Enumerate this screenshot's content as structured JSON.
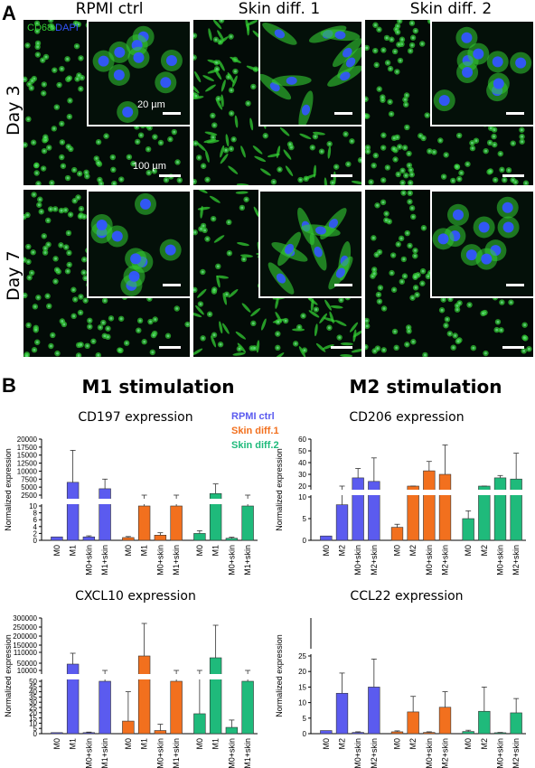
{
  "panel_labels": {
    "a": "A",
    "b": "B"
  },
  "micrographs": {
    "columns": [
      "RPMI ctrl",
      "Skin diff. 1",
      "Skin diff. 2"
    ],
    "rows": [
      "Day 3",
      "Day 7"
    ],
    "stain": {
      "marker": "CD68",
      "nuclear": "DAPI",
      "marker_color": "#33cc33",
      "nuclear_color": "#3355ff"
    },
    "scale_inset": "20 µm",
    "scale_main": "100 µm"
  },
  "stimulation_titles": {
    "m1": "M1 stimulation",
    "m2": "M2 stimulation"
  },
  "legend": [
    {
      "label": "RPMI ctrl",
      "color": "#5b5bef"
    },
    {
      "label": "Skin diff.1",
      "color": "#f2701e"
    },
    {
      "label": "Skin diff.2",
      "color": "#1fba7b"
    }
  ],
  "chart_data": [
    {
      "type": "bar",
      "title": "CD197 expression",
      "ylabel": "Normalized expression",
      "categories": [
        "M0",
        "M1",
        "M0+skin",
        "M1+skin",
        "M0",
        "M1",
        "M0+skin",
        "M1+skin",
        "M0",
        "M1",
        "M0+skin",
        "M1+skin"
      ],
      "groups": [
        "RPMI ctrl",
        "Skin diff.1",
        "Skin diff.2"
      ],
      "values": [
        1,
        6500,
        1,
        4500,
        0.8,
        10,
        1.5,
        10,
        2,
        3000,
        0.6,
        10
      ],
      "errors": [
        0,
        10000,
        0.3,
        3000,
        0.3,
        0.5,
        0.7,
        0.3,
        0.8,
        3000,
        0.3,
        0.3
      ],
      "broken_axis": true,
      "ylim_lower": [
        0,
        10
      ],
      "yticks_lower": [
        "0",
        "2",
        "4",
        "6",
        "8",
        "10"
      ],
      "yticks_upper": [
        "2500",
        "5000",
        "7500",
        "10000",
        "12500",
        "15000",
        "17500",
        "20000"
      ]
    },
    {
      "type": "bar",
      "title": "CD206 expression",
      "ylabel": "Normalized expression",
      "categories": [
        "M0",
        "M2",
        "M0+skin",
        "M2+skin",
        "M0",
        "M2",
        "M0+skin",
        "M2+skin",
        "M0",
        "M2",
        "M0+skin",
        "M2+skin"
      ],
      "groups": [
        "RPMI ctrl",
        "Skin diff.1",
        "Skin diff.2"
      ],
      "values": [
        1,
        8.2,
        27,
        24,
        3,
        13,
        33,
        30,
        5,
        16,
        27,
        26
      ],
      "errors": [
        0,
        2.5,
        8,
        20,
        0.7,
        4,
        8,
        25,
        1.8,
        4,
        2,
        22
      ],
      "broken_axis": true,
      "ylim_lower": [
        0,
        10
      ],
      "yticks_lower": [
        "0",
        "5",
        "10"
      ],
      "yticks_upper": [
        "20",
        "30",
        "40",
        "50",
        "60"
      ]
    },
    {
      "type": "bar",
      "title": "CXCL10 expression",
      "ylabel": "Normalized expression",
      "categories": [
        "M0",
        "M1",
        "M0+skin",
        "M1+skin",
        "M0",
        "M1",
        "M0+skin",
        "M1+skin",
        "M0",
        "M1",
        "M0+skin",
        "M1+skin"
      ],
      "groups": [
        "RPMI ctrl",
        "Skin diff.1",
        "Skin diff.2"
      ],
      "values": [
        1,
        45000,
        1,
        50,
        12,
        90000,
        3,
        50,
        19,
        80000,
        6,
        50
      ],
      "errors": [
        0,
        60000,
        0.5,
        2,
        28,
        180000,
        6,
        1,
        45,
        180000,
        7,
        5
      ],
      "broken_axis": true,
      "ylim_lower": [
        0,
        50
      ],
      "yticks_lower": [
        "0",
        "5",
        "10",
        "15",
        "20",
        "25",
        "30",
        "35",
        "40",
        "45",
        "50"
      ],
      "yticks_upper": [
        "10000",
        "50000",
        "110000",
        "150000",
        "200000",
        "250000",
        "300000"
      ]
    },
    {
      "type": "bar",
      "title": "CCL22 expression",
      "ylabel": "Normalized expression",
      "categories": [
        "M0",
        "M2",
        "M0+skin",
        "M2+skin",
        "M0",
        "M2",
        "M0+skin",
        "M2+skin",
        "M0",
        "M2",
        "M0+skin",
        "M2+skin"
      ],
      "groups": [
        "RPMI ctrl",
        "Skin diff.1",
        "Skin diff.2"
      ],
      "values": [
        1,
        13,
        0.4,
        15,
        0.6,
        7,
        0.4,
        8.5,
        0.7,
        7.2,
        0.3,
        6.7
      ],
      "errors": [
        0,
        6.5,
        0.2,
        9,
        0.3,
        5,
        0.2,
        5,
        0.4,
        7.8,
        0.1,
        4.6
      ],
      "broken_axis": true,
      "ylim_lower": [
        0,
        25
      ],
      "yticks_lower": [
        "0",
        "5",
        "10",
        "15",
        "20",
        "25"
      ],
      "yticks_upper": []
    }
  ]
}
